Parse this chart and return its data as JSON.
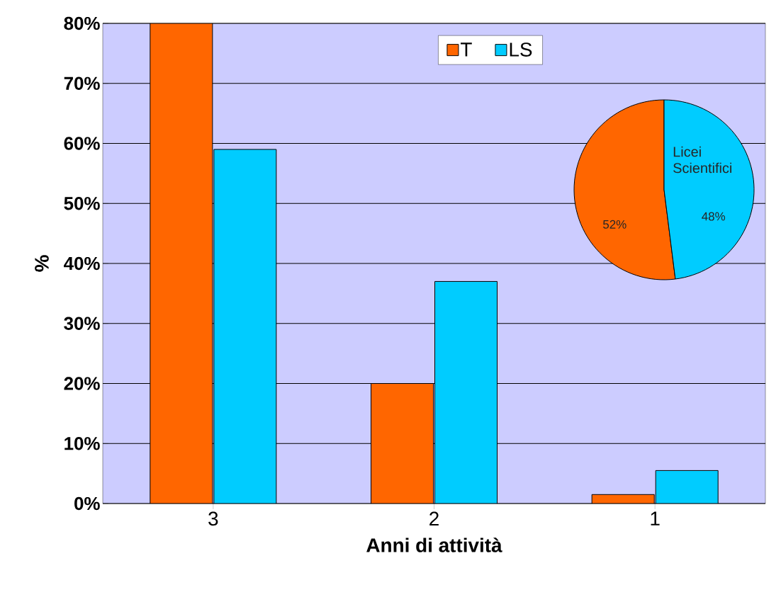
{
  "chart_data": [
    {
      "type": "bar",
      "xlabel": "Anni di attività",
      "ylabel": "%",
      "categories": [
        "3",
        "2",
        "1"
      ],
      "series": [
        {
          "name": "T",
          "color": "#ff6600",
          "values": [
            80,
            20,
            1.5
          ]
        },
        {
          "name": "LS",
          "color": "#00ccff",
          "values": [
            59,
            37,
            5.5
          ]
        }
      ],
      "ylim": [
        0,
        80
      ],
      "yticks": [
        {
          "value": 0,
          "label": "0%"
        },
        {
          "value": 10,
          "label": "10%"
        },
        {
          "value": 20,
          "label": "20%"
        },
        {
          "value": 30,
          "label": "30%"
        },
        {
          "value": 40,
          "label": "40%"
        },
        {
          "value": 50,
          "label": "50%"
        },
        {
          "value": 60,
          "label": "60%"
        },
        {
          "value": 70,
          "label": "70%"
        },
        {
          "value": 80,
          "label": "80%"
        }
      ],
      "grid": "y",
      "legend": "top"
    },
    {
      "type": "pie",
      "categories": [
        null,
        "Licei Scientifici"
      ],
      "values": [
        52,
        48
      ],
      "colors": [
        "#ff6600",
        "#00ccff"
      ],
      "value_labels": [
        "52%",
        "48%"
      ]
    }
  ]
}
